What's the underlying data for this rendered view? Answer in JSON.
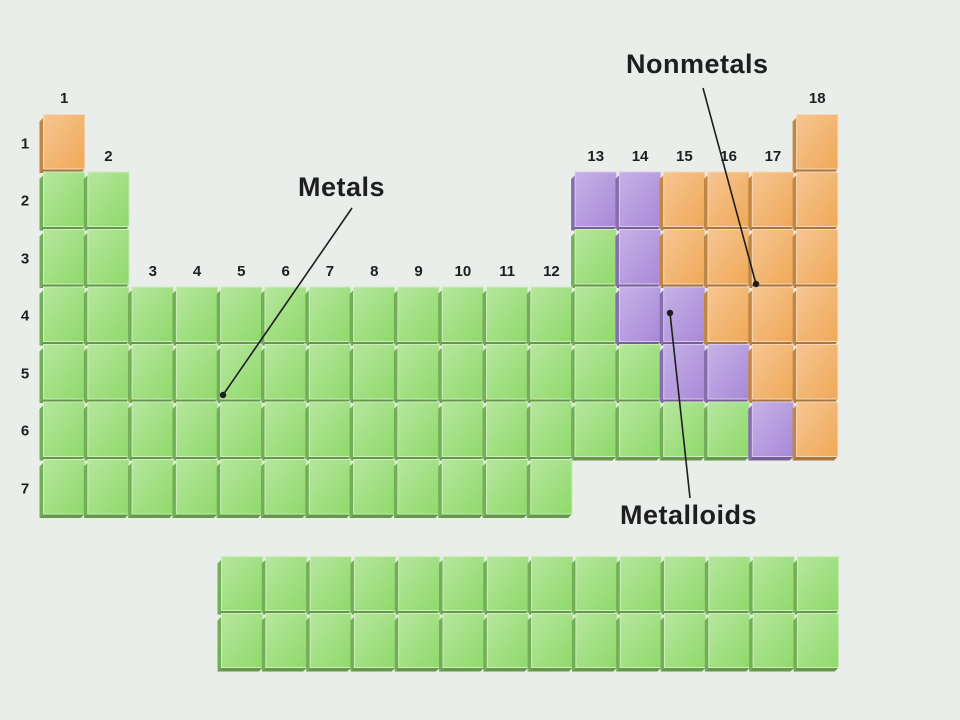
{
  "groups": [
    "1",
    "2",
    "3",
    "4",
    "5",
    "6",
    "7",
    "8",
    "9",
    "10",
    "11",
    "12",
    "13",
    "14",
    "15",
    "16",
    "17",
    "18"
  ],
  "periods": [
    "1",
    "2",
    "3",
    "4",
    "5",
    "6",
    "7"
  ],
  "callouts": {
    "metals": "Metals",
    "nonmetals": "Nonmetals",
    "metalloids": "Metalloids"
  },
  "categories": {
    "metal": "#8fd96a",
    "nonmetal": "#f0a858",
    "metalloid": "#a888d8"
  },
  "table_layout": [
    "n................n",
    "mm..........ssnnnn",
    "mm..........msnnnn",
    "mmmmmmmmmmmmmssnnn",
    "mmmmmmmmmmmmmmssnn",
    "mmmmmmmmmmmmmmmmsn",
    "mmmmmmmmmmmm......"
  ],
  "inner_transition_rows": [
    "mmmmmmmmmmmmmm",
    "mmmmmmmmmmmmmm"
  ]
}
